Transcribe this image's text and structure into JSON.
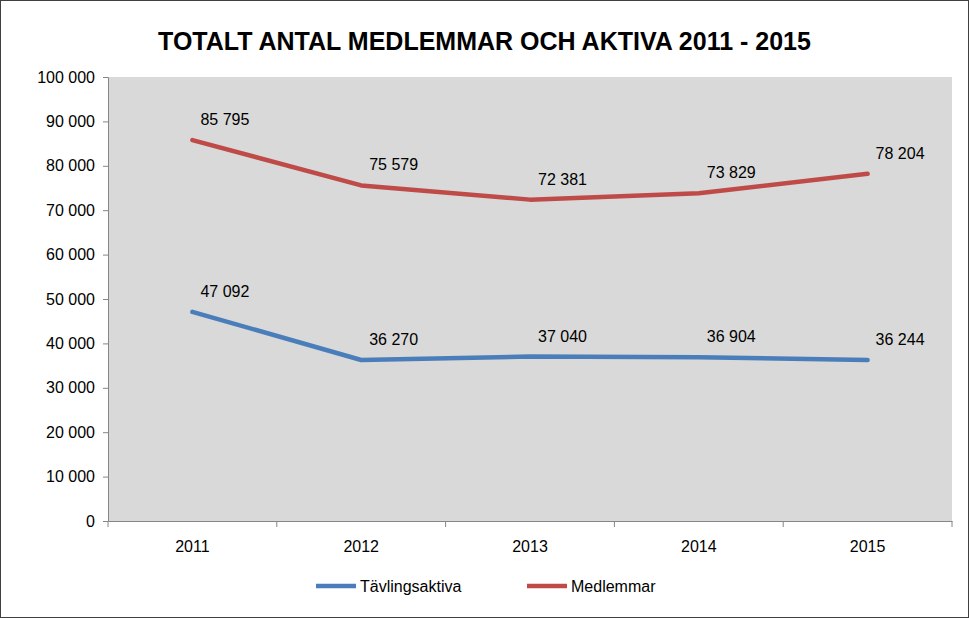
{
  "chart_data": {
    "type": "line",
    "title": "TOTALT ANTAL MEDLEMMAR OCH AKTIVA 2011 - 2015",
    "categories": [
      "2011",
      "2012",
      "2013",
      "2014",
      "2015"
    ],
    "series": [
      {
        "name": "Tävlingsaktiva",
        "color": "#4a7ebb",
        "marker": "none",
        "line_style": "solid",
        "values": [
          47092,
          36270,
          37040,
          36904,
          36244
        ],
        "value_labels": [
          "47 092",
          "36 270",
          "37 040",
          "36 904",
          "36 244"
        ]
      },
      {
        "name": "Medlemmar",
        "color": "#be4b48",
        "marker": "none",
        "line_style": "solid",
        "values": [
          85795,
          75579,
          72381,
          73829,
          78204
        ],
        "value_labels": [
          "85 795",
          "75 579",
          "72 381",
          "73 829",
          "78 204"
        ]
      }
    ],
    "ylim": [
      0,
      100000
    ],
    "yticks": [
      {
        "value": 0,
        "label": "0"
      },
      {
        "value": 10000,
        "label": "10 000"
      },
      {
        "value": 20000,
        "label": "20 000"
      },
      {
        "value": 30000,
        "label": "30 000"
      },
      {
        "value": 40000,
        "label": "40 000"
      },
      {
        "value": 50000,
        "label": "50 000"
      },
      {
        "value": 60000,
        "label": "60 000"
      },
      {
        "value": 70000,
        "label": "70 000"
      },
      {
        "value": 80000,
        "label": "80 000"
      },
      {
        "value": 90000,
        "label": "90 000"
      },
      {
        "value": 100000,
        "label": "100 000"
      }
    ],
    "grid": false,
    "legend": "bottom",
    "data_labels": true
  }
}
